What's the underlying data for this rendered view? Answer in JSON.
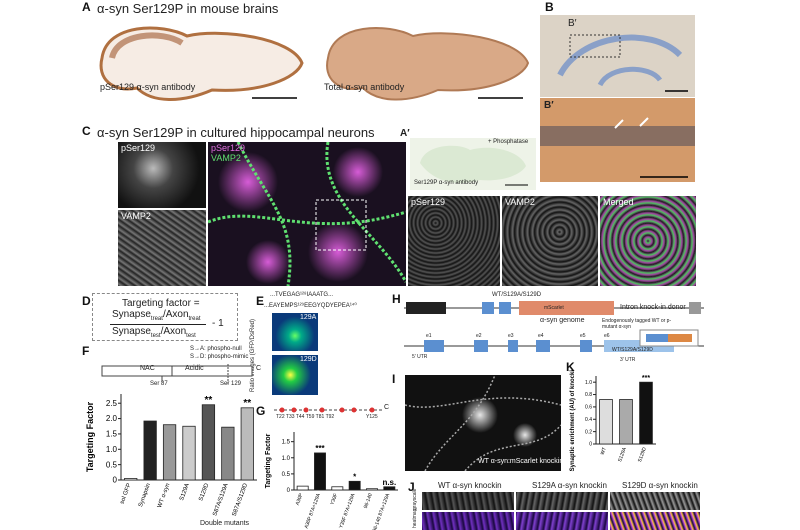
{
  "panel_A": {
    "letter": "A",
    "title": "α-syn Ser129P in mouse brains",
    "left_label": "pSer129 α-syn antibody",
    "right_label": "Total α-syn antibody"
  },
  "panel_A_prime": {
    "letter": "A′",
    "label": "Ser129P α-syn antibody",
    "treatment": "+ Phosphatase"
  },
  "panel_B": {
    "letter": "B",
    "inset": "B′"
  },
  "panel_B_prime": {
    "letter": "B′"
  },
  "panel_C": {
    "letter": "C",
    "title": "α-syn Ser129P in cultured hippocampal neurons",
    "labels": [
      "pSer129",
      "VAMP2",
      "pSer129",
      "VAMP2",
      "pSer129",
      "VAMP2",
      "Merged"
    ]
  },
  "panel_D": {
    "letter": "D",
    "lhs": "Targeting factor =",
    "num_a": "Synapse",
    "num_a_sub": "treat",
    "num_b": "/Axon",
    "num_b_sub": "treat",
    "den_a": "Synapse",
    "den_a_sub": "test",
    "den_b": "/Axon",
    "den_b_sub": "test",
    "tail": "- 1"
  },
  "panel_E": {
    "letter": "E",
    "seq1": "...TVEGAG¹²⁸IAAATG...",
    "seq2": "...EAYEMPS¹²⁹EEGYQDYEPEA¹⁴⁰",
    "axis": "Ratio images (GFP/DsRed)",
    "top": "129A",
    "bottom": "129D"
  },
  "panel_F": {
    "letter": "F",
    "legend1": "S→A: phospho-null",
    "legend2": "S→D: phospho-mimic",
    "nac": "NAC",
    "acidic": "Acidic",
    "cterm": "C",
    "site1": "Ser 87",
    "site2": "Ser 129",
    "group": "Double mutants"
  },
  "panel_G": {
    "letter": "G",
    "sites": "T22 T33 T44 T59 T81 T92",
    "cterm": "C",
    "tail": "Y125"
  },
  "panel_H": {
    "letter": "H",
    "mutants": "WT/S129A/S129D",
    "donor": "Intron knock-in donor",
    "genome": "α-syn genome",
    "tagged": "Endogenously tagged WT or p-mutant α-syn",
    "mutants2": "WT/S129A/S129D",
    "utr5": "5′ UTR",
    "utr3": "3′ UTR",
    "fp": "mScarlet",
    "exons": [
      "e1",
      "e2",
      "e3",
      "e4",
      "e5",
      "e6"
    ]
  },
  "panel_I": {
    "letter": "I",
    "label": "WT α-syn:mScarlet knockin"
  },
  "panel_J": {
    "letter": "J",
    "cols": [
      "WT α-syn knockin",
      "S129A α-syn knockin",
      "S129D α-syn knockin"
    ],
    "rows": [
      "grayscale",
      "heatmap"
    ]
  },
  "panel_K": {
    "letter": "K"
  },
  "chart_data": [
    {
      "type": "bar",
      "ylabel": "Targeting Factor",
      "categories": [
        "sol GFP",
        "Synapsin",
        "WT α-syn",
        "S129A",
        "S129D",
        "S87A/S129A",
        "S87A/S129D"
      ],
      "values": [
        0.05,
        1.92,
        1.8,
        1.75,
        2.45,
        1.72,
        2.35
      ],
      "colors": [
        "#ffffff",
        "#222222",
        "#999999",
        "#cccccc",
        "#555555",
        "#888888",
        "#bbbbbb"
      ],
      "significance": [
        null,
        null,
        null,
        null,
        "**",
        null,
        "**"
      ],
      "ylim": [
        0,
        2.8
      ],
      "yticks": [
        0,
        0.5,
        {
          "value": 1,
          "label": "1.0"
        },
        1.5,
        {
          "value": 2,
          "label": "2.0"
        },
        2.5
      ]
    },
    {
      "type": "bar",
      "ylabel": "Targeting Factor",
      "categories": [
        "A30P",
        "A30P 87A+129A",
        "Y39F",
        "Y39F 87A+129A",
        "96-140",
        "96-140 87A+129A"
      ],
      "values": [
        0.12,
        1.15,
        0.1,
        0.27,
        0.04,
        0.1
      ],
      "colors": [
        "#ffffff",
        "#111111",
        "#ffffff",
        "#111111",
        "#ffffff",
        "#111111"
      ],
      "significance": [
        null,
        "***",
        null,
        "*",
        null,
        "n.s."
      ],
      "ylim": [
        0,
        1.8
      ],
      "yticks": [
        0,
        0.5,
        {
          "value": 1,
          "label": "1.0"
        },
        1.5
      ]
    },
    {
      "type": "bar",
      "ylabel": "Synaptic enrichment (AU) of knockin α-syn",
      "categories": [
        "WT",
        "S129A",
        "S129D"
      ],
      "values": [
        0.72,
        0.72,
        1.0
      ],
      "colors": [
        "#dddddd",
        "#aaaaaa",
        "#111111"
      ],
      "significance": [
        null,
        null,
        "***"
      ],
      "ylim": [
        0,
        1.1
      ],
      "yticks": [
        0,
        0.2,
        0.4,
        0.6,
        0.8,
        {
          "value": 1,
          "label": "1.0"
        }
      ]
    }
  ]
}
